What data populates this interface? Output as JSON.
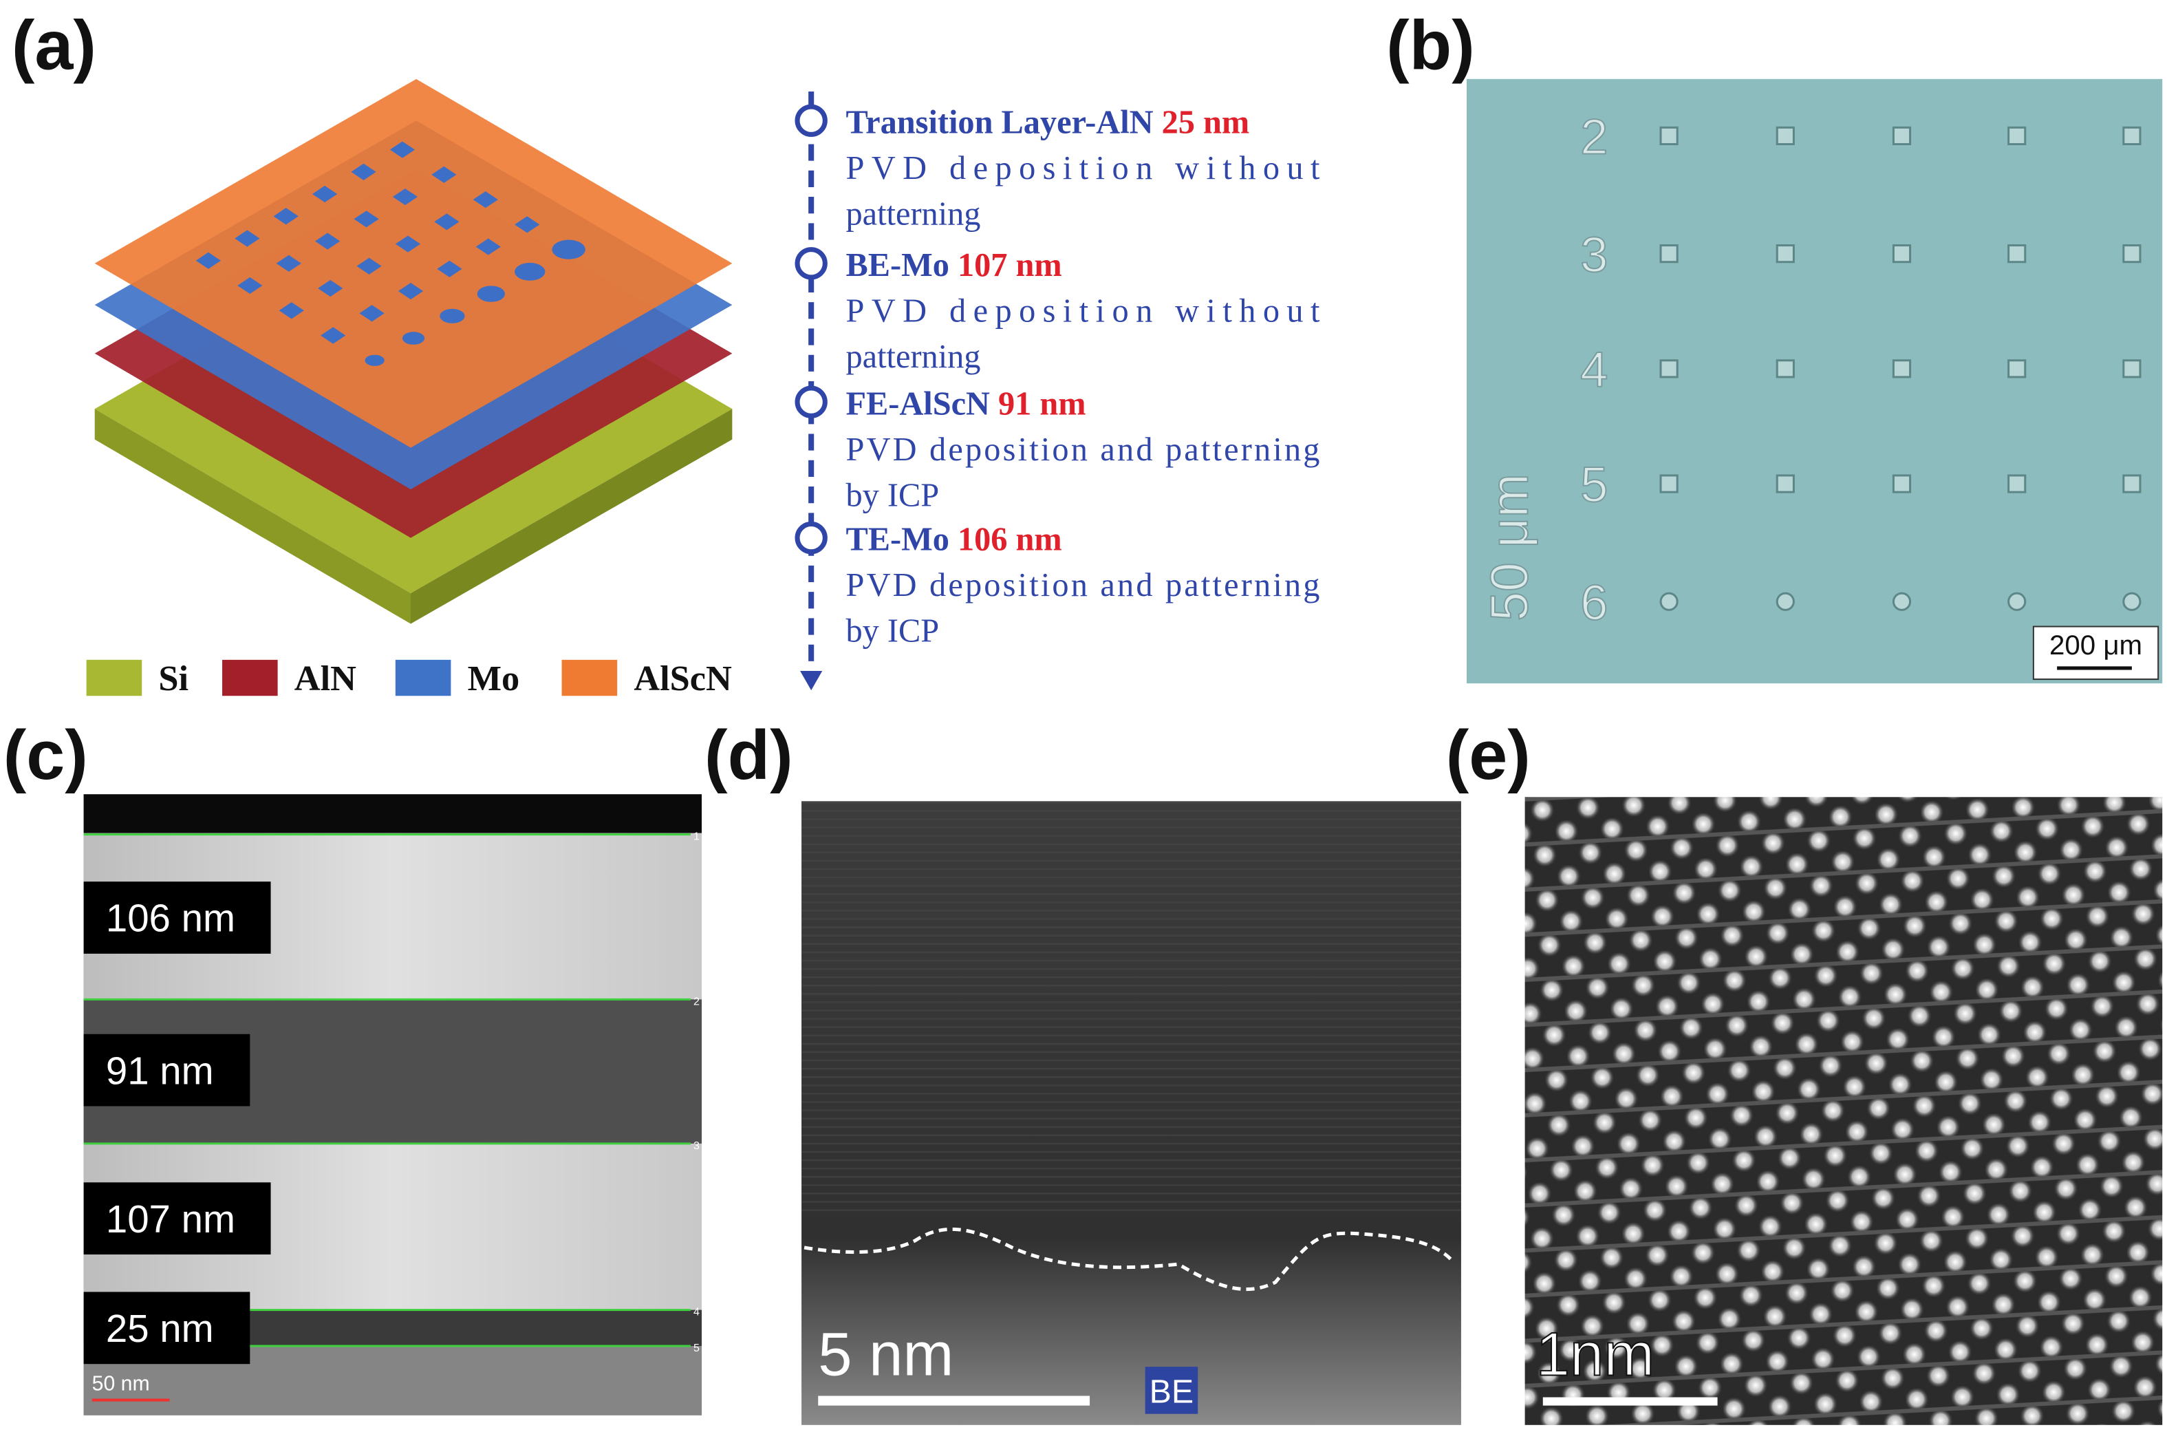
{
  "panels": {
    "a": {
      "label": "(a)",
      "steps": [
        {
          "title": "Transition Layer-AlN",
          "thickness": "25 nm",
          "description": [
            "PVD deposition without",
            "patterning"
          ]
        },
        {
          "title": "BE-Mo",
          "thickness": "107 nm",
          "description": [
            "PVD deposition without",
            "patterning"
          ]
        },
        {
          "title": "FE-AlScN",
          "thickness": "91 nm",
          "description": [
            "PVD deposition and patterning",
            "by ICP"
          ]
        },
        {
          "title": "TE-Mo",
          "thickness": "106 nm",
          "description": [
            "PVD deposition and patterning",
            "by ICP"
          ]
        }
      ],
      "legend": [
        "Si",
        "AlN",
        "Mo",
        "AlScN"
      ]
    },
    "b": {
      "label": "(b)",
      "row_labels": [
        "2",
        "3",
        "4",
        "5",
        "6"
      ],
      "side_label": "50 μm",
      "scale_bar": "200 μm"
    },
    "c": {
      "label": "(c)",
      "layers": [
        "106 nm",
        "91 nm",
        "107 nm",
        "25 nm"
      ],
      "markers": [
        "1",
        "2",
        "3",
        "4",
        "5"
      ],
      "scale_bar": "50 nm"
    },
    "d": {
      "label": "(d)",
      "scale_bar": "5 nm",
      "tag": "BE"
    },
    "e": {
      "label": "(e)",
      "scale_bar": "1nm"
    }
  }
}
